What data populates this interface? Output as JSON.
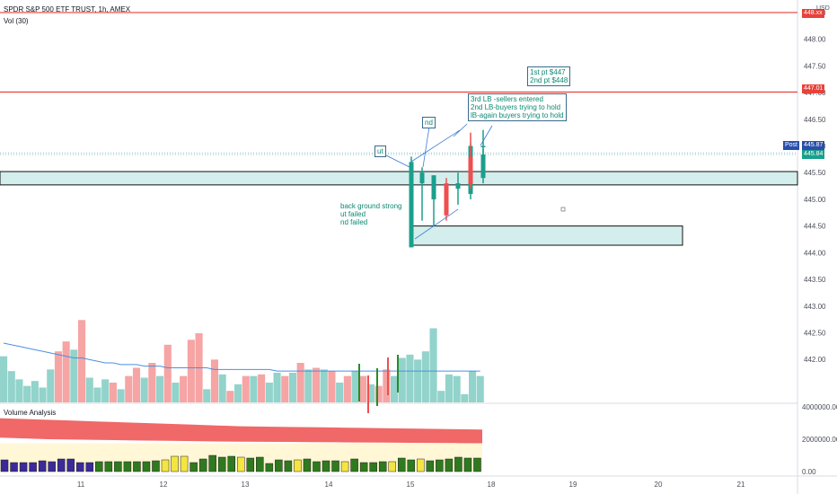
{
  "header": {
    "symbol_line": "SPDR S&P 500 ETF TRUST, 1h, AMEX",
    "volume_label": "Vol (30)"
  },
  "subpane": {
    "title": "Volume Analysis"
  },
  "axis": {
    "currency": "USD",
    "price_ticks": [
      "448.50",
      "448.00",
      "447.50",
      "447.00",
      "446.50",
      "446.00",
      "445.50",
      "445.00",
      "444.50",
      "444.00",
      "443.50",
      "443.00",
      "442.50",
      "442.00"
    ],
    "volume_ticks": [
      "4000000.00",
      "2000000.00",
      "0.00"
    ],
    "date_ticks": [
      "11",
      "12",
      "13",
      "14",
      "15",
      "18",
      "19",
      "20",
      "21"
    ]
  },
  "price_tags": {
    "top_red": "448.xx",
    "line_447": "447.01",
    "post_label": "Post",
    "post_price": "445.87",
    "last_price": "445.84"
  },
  "annotations": {
    "targets": [
      "1st pt $447",
      "2nd pt $448"
    ],
    "lb_notes": [
      "3rd  LB -sellers entered",
      "2nd LB-buyers trying to hold",
      "lB-again buyers trying to hold"
    ],
    "nd": "nd",
    "ut": "ut",
    "back_notes": [
      "back ground strong",
      "ut failed",
      "nd failed"
    ]
  },
  "colors": {
    "up": "#1a9f8c",
    "down": "#ef4f4f",
    "vol_up": "#92d3cb",
    "vol_down": "#f6a4a4",
    "red_line": "#e8423a",
    "zone_fill": "#d3eeec",
    "ma": "#4a90e2",
    "post": "#2a4fa8",
    "band": "#f06868"
  },
  "chart_data": [
    {
      "type": "candlestick",
      "title": "SPDR S&P 500 ETF TRUST, 1h, AMEX",
      "ylim": [
        441.7,
        448.6
      ],
      "horizontal_lines": [
        448.5,
        447.01
      ],
      "zones": [
        [
          445.27,
          445.52
        ],
        [
          444.14,
          444.5
        ]
      ],
      "candles": [
        {
          "o": 444.1,
          "h": 445.8,
          "l": 444.1,
          "c": 445.7
        },
        {
          "o": 445.3,
          "h": 445.6,
          "l": 444.6,
          "c": 445.5
        },
        {
          "o": 445.0,
          "h": 445.45,
          "l": 444.5,
          "c": 445.45
        },
        {
          "o": 445.3,
          "h": 445.4,
          "l": 444.6,
          "c": 444.7
        },
        {
          "o": 445.2,
          "h": 445.5,
          "l": 444.9,
          "c": 445.3
        },
        {
          "o": 445.1,
          "h": 446.05,
          "l": 445.0,
          "c": 446.0
        },
        {
          "o": 446.0,
          "h": 446.3,
          "l": 445.6,
          "c": 446.0
        },
        {
          "o": 445.8,
          "h": 446.25,
          "l": 445.2,
          "c": 445.3
        },
        {
          "o": 445.4,
          "h": 445.95,
          "l": 445.3,
          "c": 445.84
        }
      ],
      "last_price": 445.84,
      "post_price": 445.87
    },
    {
      "type": "bar",
      "title": "Vol (30)",
      "values": [
        28,
        19,
        14,
        10,
        13,
        9,
        20,
        31,
        37,
        32,
        50,
        15,
        9,
        14,
        12,
        8,
        16,
        21,
        15,
        24,
        16,
        35,
        12,
        16,
        38,
        42,
        8,
        26,
        17,
        7,
        11,
        16,
        16,
        17,
        12,
        18,
        16,
        18,
        24,
        20,
        21,
        20,
        19,
        12,
        16,
        19,
        16,
        11,
        10,
        20,
        16,
        27,
        29,
        26,
        31,
        45,
        7,
        17,
        16,
        5,
        19,
        16
      ],
      "ma": [
        36,
        35,
        34,
        33,
        32,
        31,
        30,
        29,
        28,
        27,
        27,
        26,
        25,
        24,
        24,
        23,
        23,
        23,
        22,
        22,
        22,
        21,
        21,
        21,
        21,
        21,
        21,
        20,
        20,
        20,
        20,
        20,
        20,
        20,
        20,
        19,
        19,
        19,
        19,
        19,
        19,
        19,
        19,
        19,
        19,
        19,
        19,
        19,
        19,
        19,
        19,
        19,
        19,
        19,
        19,
        19,
        19,
        19,
        19,
        19,
        19,
        19
      ],
      "ylim": [
        0,
        60
      ]
    },
    {
      "type": "bar",
      "title": "Volume Analysis",
      "values": [
        13,
        10,
        10,
        10,
        12,
        11,
        14,
        14,
        10,
        10,
        11,
        11,
        11,
        11,
        11,
        11,
        12,
        13,
        17,
        17,
        10,
        14,
        18,
        16,
        17,
        16,
        15,
        16,
        9,
        13,
        12,
        13,
        14,
        11,
        12,
        12,
        11,
        14,
        10,
        10,
        11,
        11,
        15,
        13,
        14,
        12,
        13,
        14,
        16,
        15,
        15
      ],
      "highlight": [
        17,
        18,
        19,
        25,
        31,
        36,
        41,
        44
      ],
      "ylim": [
        0,
        4000000
      ],
      "band_upper": [
        3300000,
        3250000,
        3200000,
        3150000,
        3100000,
        3050000,
        3000000,
        2950000,
        2900000,
        2850000,
        2800000,
        2780000,
        2760000,
        2740000,
        2720000,
        2700000,
        2680000,
        2660000,
        2640000,
        2620000,
        2600000
      ],
      "band_lower": [
        2100000,
        2050000,
        2000000,
        1980000,
        1960000,
        1940000,
        1920000,
        1900000,
        1880000,
        1860000,
        1850000,
        1840000,
        1830000,
        1820000,
        1810000,
        1800000,
        1790000,
        1780000,
        1770000,
        1760000,
        1750000
      ]
    }
  ]
}
